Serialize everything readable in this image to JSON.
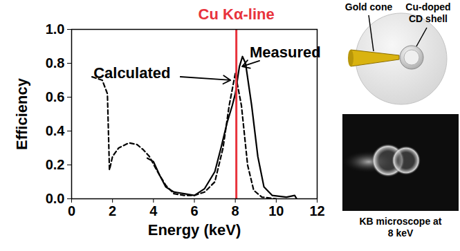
{
  "chart_data": {
    "type": "line",
    "xlabel": "Energy (keV)",
    "ylabel": "Efficiency",
    "xlim": [
      0,
      12
    ],
    "ylim": [
      0,
      1.0
    ],
    "xticks": [
      0,
      2,
      4,
      6,
      8,
      10,
      12
    ],
    "yticks": [
      {
        "value": 0,
        "label": "0.0"
      },
      {
        "value": 0.2,
        "label": "0.2"
      },
      {
        "value": 0.4,
        "label": "0.4"
      },
      {
        "value": 0.6,
        "label": "0.6"
      },
      {
        "value": 0.8,
        "label": "0.8"
      },
      {
        "value": 1.0,
        "label": "1.0"
      }
    ],
    "grid": false,
    "series": [
      {
        "name": "Calculated",
        "color": "#000000",
        "line_style": "dashed",
        "x": [
          1.0,
          1.5,
          1.75,
          1.85,
          2.0,
          2.3,
          2.8,
          3.2,
          3.5,
          3.8,
          4.2,
          4.6,
          5.0,
          5.5,
          6.0,
          6.5,
          7.0,
          7.4,
          7.7,
          8.0,
          8.3,
          8.6,
          8.9,
          9.3,
          10.0
        ],
        "values": [
          0.72,
          0.7,
          0.62,
          0.17,
          0.25,
          0.3,
          0.33,
          0.32,
          0.29,
          0.25,
          0.16,
          0.08,
          0.03,
          0.02,
          0.02,
          0.04,
          0.1,
          0.3,
          0.55,
          0.74,
          0.55,
          0.2,
          0.05,
          0.01,
          0.0
        ],
        "label_at": [
          2.95,
          0.74
        ],
        "arrow_to": [
          7.8,
          0.7
        ]
      },
      {
        "name": "Measured",
        "color": "#000000",
        "line_style": "solid",
        "x": [
          3.7,
          4.0,
          4.3,
          4.6,
          5.0,
          5.5,
          6.0,
          6.5,
          7.0,
          7.3,
          7.6,
          7.85,
          8.0,
          8.2,
          8.35,
          8.5,
          8.8,
          9.1,
          9.4,
          9.8,
          10.5,
          10.9,
          11.0
        ],
        "values": [
          0.24,
          0.22,
          0.14,
          0.07,
          0.04,
          0.03,
          0.02,
          0.06,
          0.16,
          0.3,
          0.45,
          0.55,
          0.62,
          0.78,
          0.84,
          0.8,
          0.55,
          0.25,
          0.07,
          0.02,
          0.01,
          0.02,
          0.0
        ],
        "label_at": [
          10.44,
          0.865
        ],
        "arrow_to": [
          8.3,
          0.78
        ]
      }
    ],
    "vline": {
      "x": 8.05,
      "label": "Cu Kα-line",
      "color": "#e8333c"
    }
  },
  "diagram": {
    "labels": [
      "Gold cone",
      "Cu-doped CD shell"
    ]
  },
  "image": {
    "caption": "KB microscope at 8 keV"
  }
}
